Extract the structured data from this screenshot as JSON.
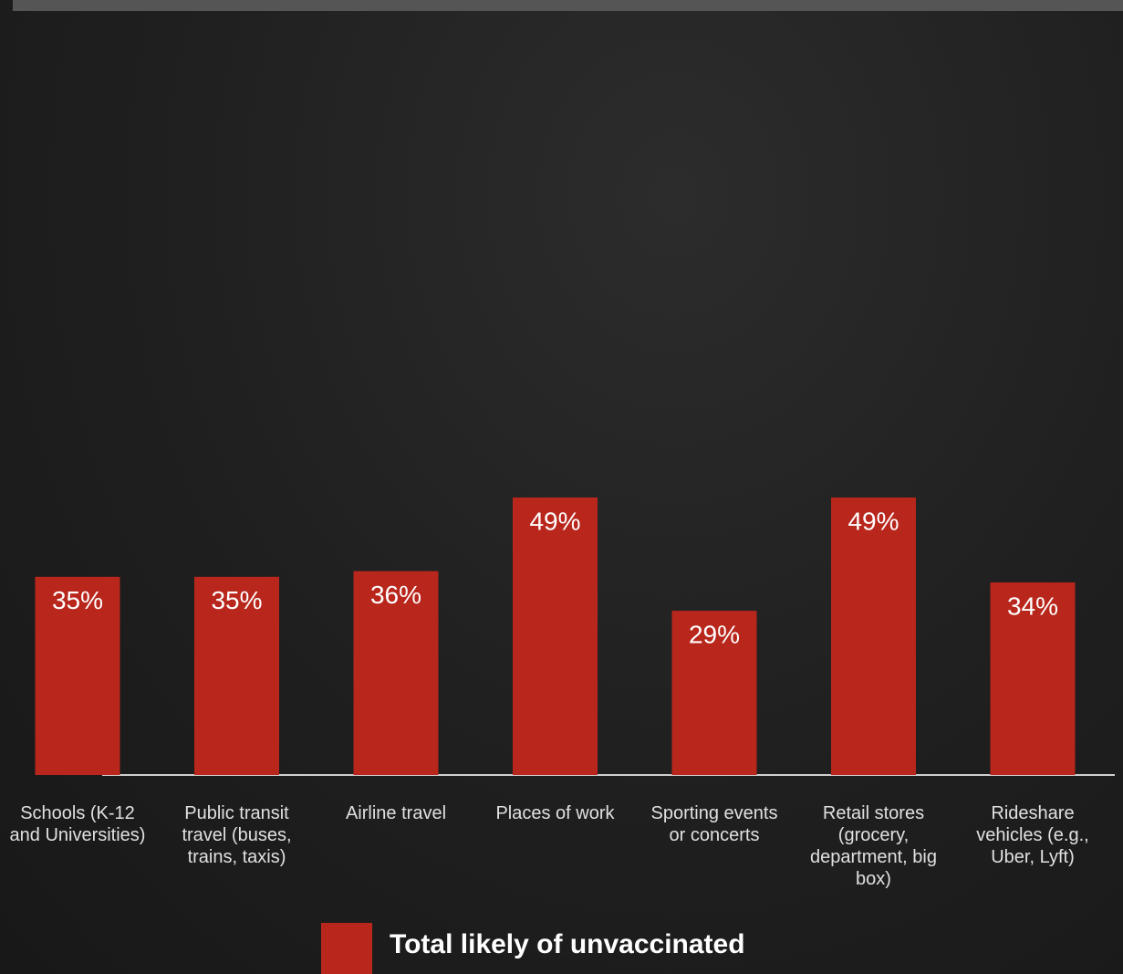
{
  "chart_data": {
    "type": "bar",
    "categories": [
      "Schools (K-12 and Universities)",
      "Public transit travel (buses, trains, taxis)",
      "Airline travel",
      "Places of work",
      "Sporting events or concerts",
      "Retail stores (grocery, department, big box)",
      "Rideshare vehicles (e.g., Uber, Lyft)"
    ],
    "series": [
      {
        "name": "Total likely of unvaccinated",
        "color": "#b8261c",
        "values": [
          35,
          35,
          36,
          49,
          29,
          49,
          34
        ],
        "value_labels": [
          "35%",
          "35%",
          "36%",
          "49%",
          "29%",
          "49%",
          "34%"
        ]
      }
    ]
  }
}
